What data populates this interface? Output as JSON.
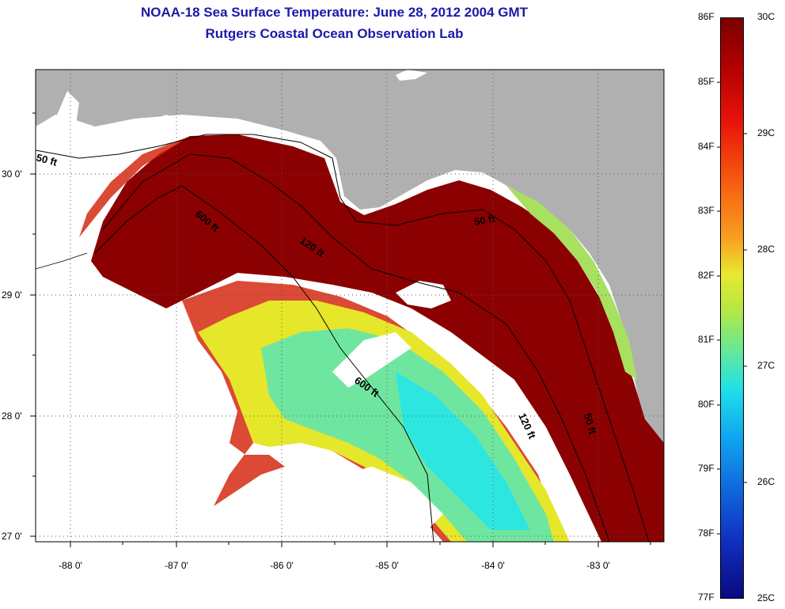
{
  "title": {
    "line1": "NOAA-18 Sea Surface Temperature:  June 28, 2012 2004 GMT",
    "line2": "Rutgers Coastal Ocean Observation Lab"
  },
  "map": {
    "longitude_labels": [
      "-88 0'",
      "-87 0'",
      "-86 0'",
      "-85 0'",
      "-84 0'",
      "-83 0'"
    ],
    "latitude_labels": [
      "30 0'",
      "29 0'",
      "28 0'",
      "27 0'"
    ],
    "contour_labels": [
      "50 ft",
      "600 ft",
      "120 ft",
      "50 ft",
      "600 ft",
      "120 ft",
      "50 ft"
    ]
  },
  "colorbar": {
    "fahrenheit_labels": [
      "86F",
      "85F",
      "84F",
      "83F",
      "82F",
      "81F",
      "80F",
      "79F",
      "78F",
      "77F"
    ],
    "celsius_labels": [
      "30C",
      "29C",
      "28C",
      "27C",
      "26C",
      "25C"
    ]
  },
  "colors": {
    "land": "#b0b0b0",
    "no_data": "#ffffff",
    "title": "#1a1aa8"
  }
}
